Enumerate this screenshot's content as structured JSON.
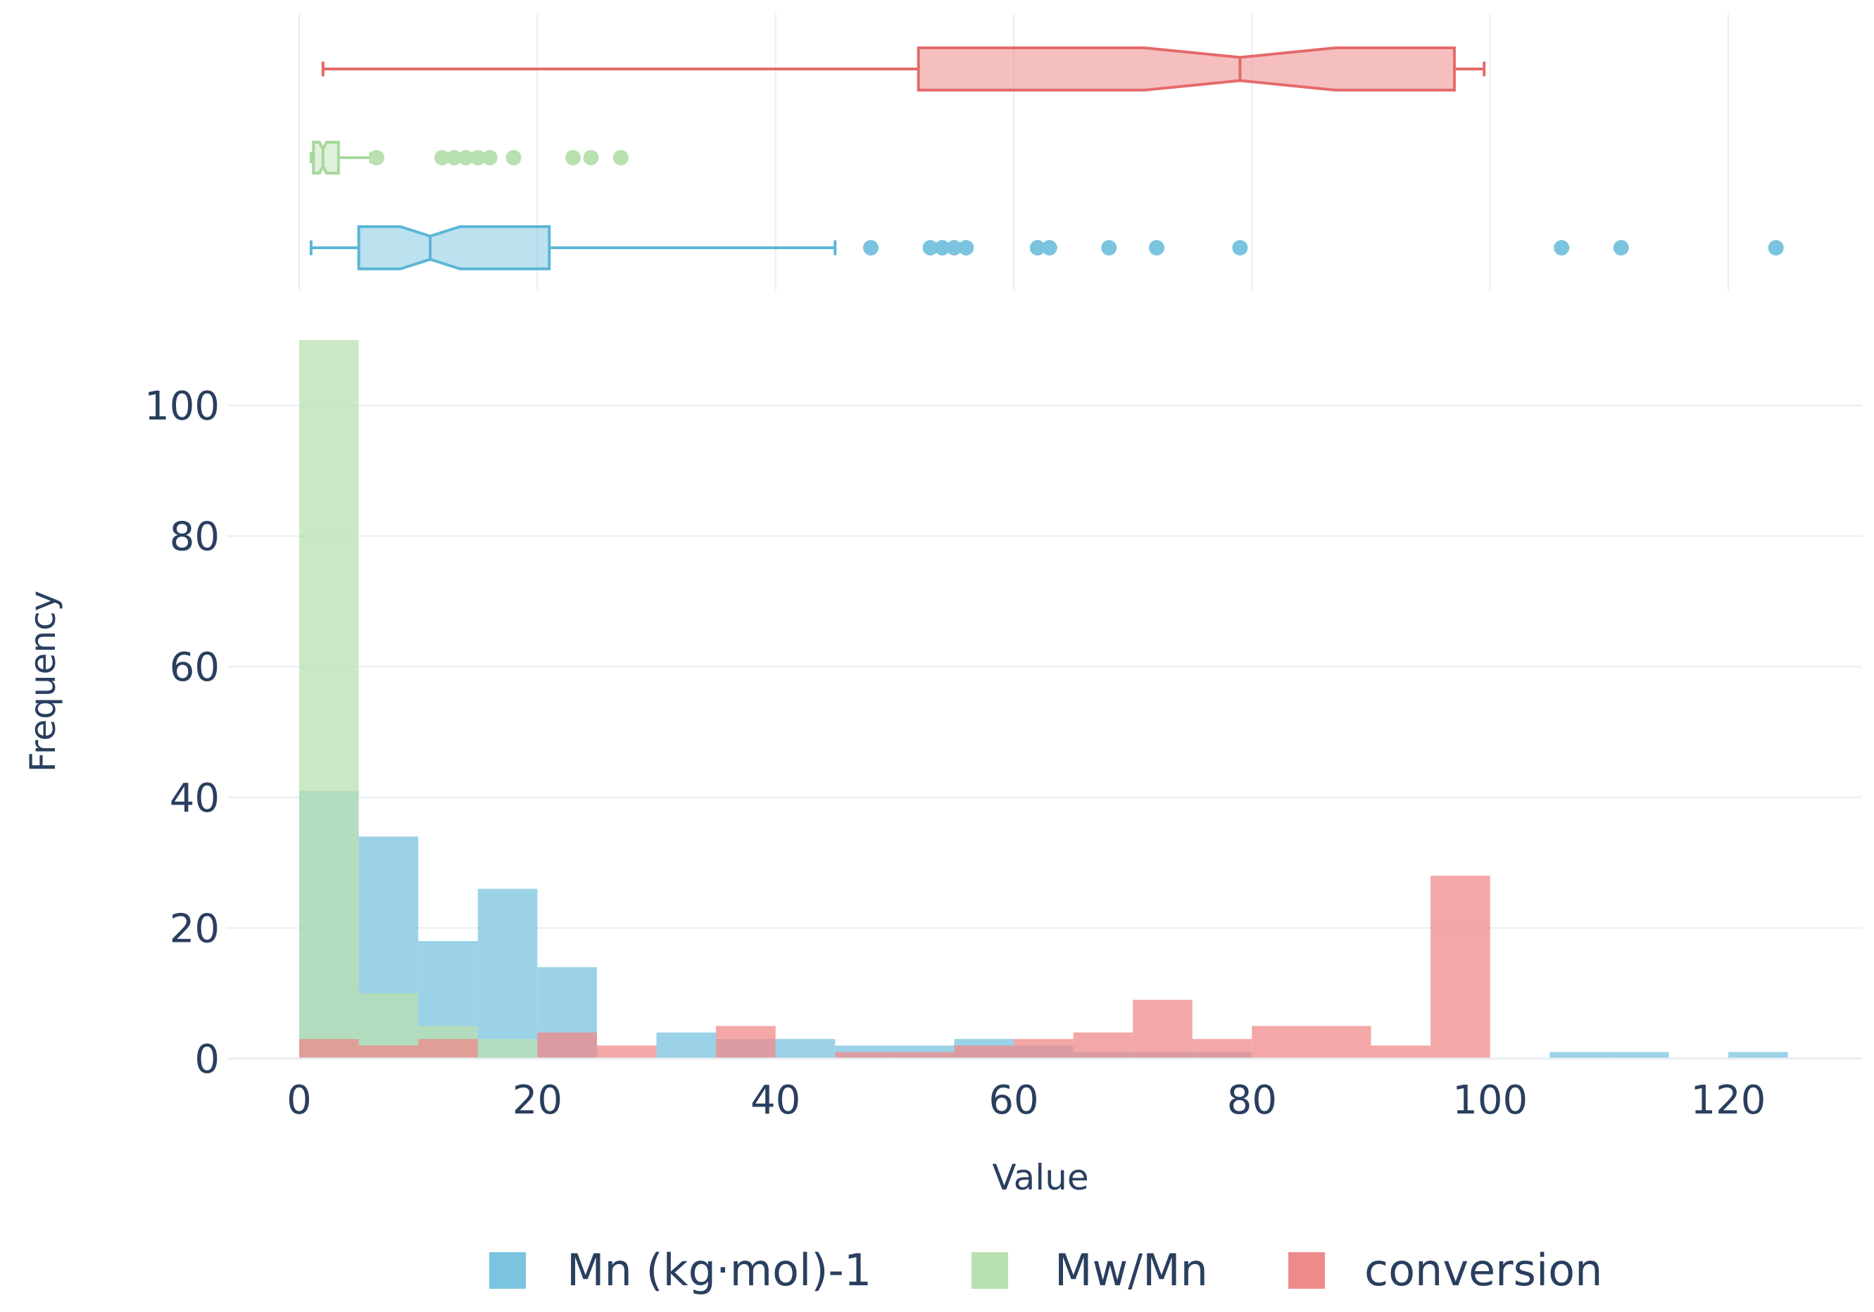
{
  "chart_data": {
    "type": "histogram",
    "xlabel": "Value",
    "ylabel": "Frequency",
    "xlim": [
      -3,
      129
    ],
    "ylim": [
      0,
      110
    ],
    "x_ticks": [
      0,
      20,
      40,
      60,
      80,
      100,
      120
    ],
    "y_ticks": [
      0,
      20,
      40,
      60,
      80,
      100
    ],
    "grid": true,
    "bin_width": 5,
    "legend_position": "bottom-center",
    "series": [
      {
        "name": "Mn (kg·mol)-1",
        "color": "#7ac4df",
        "bins": [
          {
            "start": 0,
            "count": 41
          },
          {
            "start": 5,
            "count": 34
          },
          {
            "start": 10,
            "count": 18
          },
          {
            "start": 15,
            "count": 26
          },
          {
            "start": 20,
            "count": 14
          },
          {
            "start": 25,
            "count": 0
          },
          {
            "start": 30,
            "count": 4
          },
          {
            "start": 35,
            "count": 3
          },
          {
            "start": 40,
            "count": 3
          },
          {
            "start": 45,
            "count": 2
          },
          {
            "start": 50,
            "count": 2
          },
          {
            "start": 55,
            "count": 3
          },
          {
            "start": 60,
            "count": 2
          },
          {
            "start": 65,
            "count": 1
          },
          {
            "start": 70,
            "count": 1
          },
          {
            "start": 75,
            "count": 1
          },
          {
            "start": 80,
            "count": 0
          },
          {
            "start": 85,
            "count": 0
          },
          {
            "start": 90,
            "count": 0
          },
          {
            "start": 95,
            "count": 0
          },
          {
            "start": 100,
            "count": 0
          },
          {
            "start": 105,
            "count": 1
          },
          {
            "start": 110,
            "count": 1
          },
          {
            "start": 115,
            "count": 0
          },
          {
            "start": 120,
            "count": 1
          }
        ],
        "box": {
          "whisker_low": 1,
          "q1": 5,
          "median": 11,
          "q3": 21,
          "whisker_high": 45,
          "notch_low": 8.5,
          "notch_high": 13.5,
          "outliers": [
            48,
            53,
            54,
            55,
            56,
            62,
            63,
            68,
            72,
            79,
            106,
            111,
            124
          ]
        }
      },
      {
        "name": "Mw/Mn",
        "color": "#b9e0b0",
        "bins": [
          {
            "start": 0,
            "count": 110
          },
          {
            "start": 5,
            "count": 10
          },
          {
            "start": 10,
            "count": 5
          },
          {
            "start": 15,
            "count": 3
          },
          {
            "start": 20,
            "count": 0
          },
          {
            "start": 25,
            "count": 0
          }
        ],
        "box": {
          "whisker_low": 1,
          "q1": 1.2,
          "median": 2,
          "q3": 3.3,
          "whisker_high": 6,
          "notch_low": 1.7,
          "notch_high": 2.3,
          "outliers": [
            6.5,
            12,
            13,
            14,
            15,
            16,
            18,
            23,
            24.5,
            27
          ]
        }
      },
      {
        "name": "conversion",
        "color": "#ef8a8a",
        "bins": [
          {
            "start": 0,
            "count": 3
          },
          {
            "start": 5,
            "count": 2
          },
          {
            "start": 10,
            "count": 3
          },
          {
            "start": 15,
            "count": 0
          },
          {
            "start": 20,
            "count": 4
          },
          {
            "start": 25,
            "count": 2
          },
          {
            "start": 30,
            "count": 0
          },
          {
            "start": 35,
            "count": 5
          },
          {
            "start": 40,
            "count": 0
          },
          {
            "start": 45,
            "count": 1
          },
          {
            "start": 50,
            "count": 1
          },
          {
            "start": 55,
            "count": 2
          },
          {
            "start": 60,
            "count": 3
          },
          {
            "start": 65,
            "count": 4
          },
          {
            "start": 70,
            "count": 9
          },
          {
            "start": 75,
            "count": 3
          },
          {
            "start": 80,
            "count": 5
          },
          {
            "start": 85,
            "count": 5
          },
          {
            "start": 90,
            "count": 2
          },
          {
            "start": 95,
            "count": 28
          }
        ],
        "box": {
          "whisker_low": 2,
          "q1": 52,
          "median": 79,
          "q3": 97,
          "whisker_high": 99.5,
          "notch_low": 71,
          "notch_high": 87,
          "outliers": []
        }
      }
    ]
  }
}
